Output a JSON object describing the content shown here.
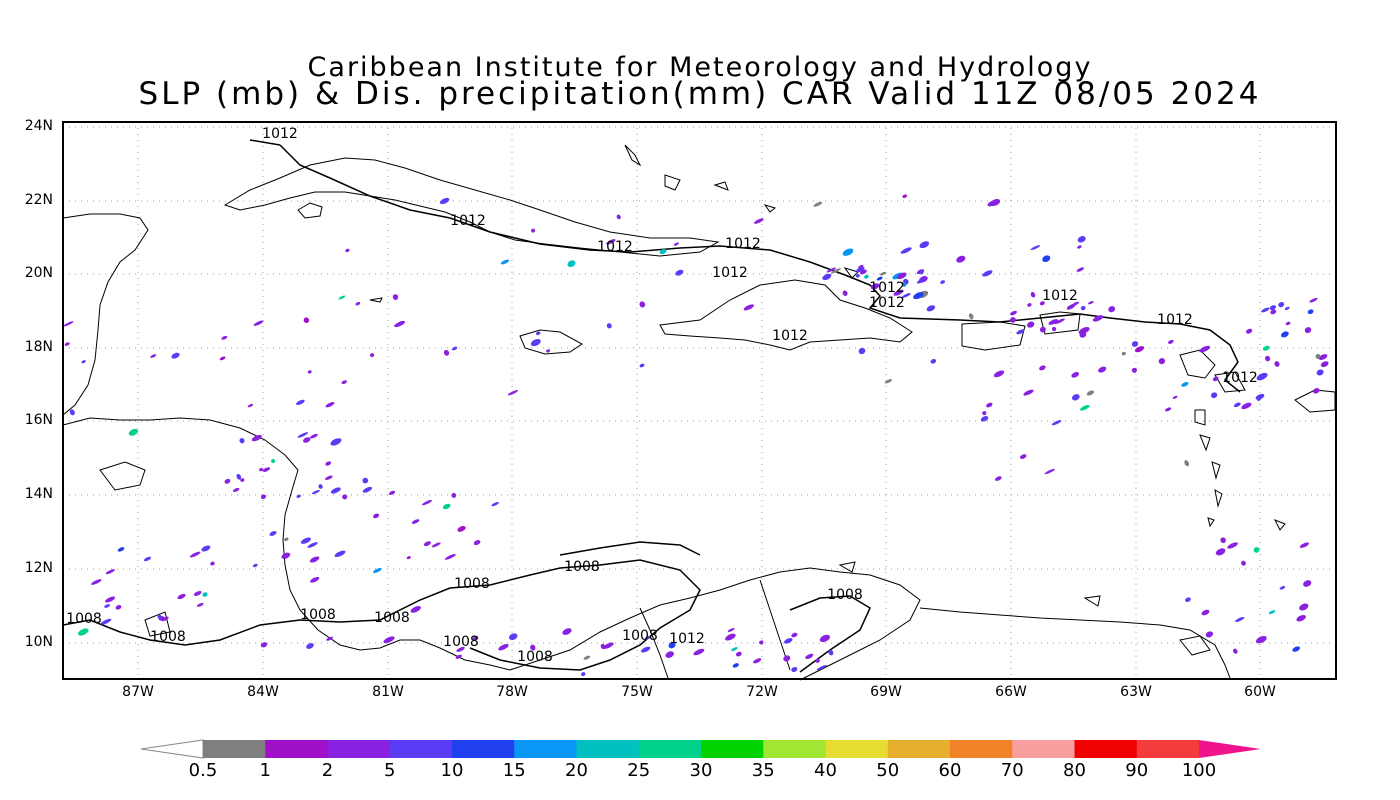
{
  "title": {
    "line1": "Caribbean Institute for Meteorology and Hydrology",
    "line2": "SLP (mb) & Dis. precipitation(mm) CAR Valid 11Z 08/05 2024"
  },
  "axes": {
    "lat_labels": [
      "24N",
      "22N",
      "20N",
      "18N",
      "16N",
      "14N",
      "12N",
      "10N"
    ],
    "lon_labels": [
      "87W",
      "84W",
      "81W",
      "78W",
      "75W",
      "72W",
      "69W",
      "66W",
      "63W",
      "60W"
    ]
  },
  "isobars": {
    "labels": [
      {
        "text": "1012"
      },
      {
        "text": "1012"
      },
      {
        "text": "1012"
      },
      {
        "text": "1012"
      },
      {
        "text": "1012"
      },
      {
        "text": "1012"
      },
      {
        "text": "1012"
      },
      {
        "text": "1012"
      },
      {
        "text": "1012"
      },
      {
        "text": "1012"
      },
      {
        "text": "1012"
      },
      {
        "text": "1008"
      },
      {
        "text": "1008"
      },
      {
        "text": "1008"
      },
      {
        "text": "1008"
      },
      {
        "text": "1008"
      },
      {
        "text": "1008"
      },
      {
        "text": "1008"
      },
      {
        "text": "1008"
      },
      {
        "text": "1008"
      },
      {
        "text": "1008"
      },
      {
        "text": "1012"
      }
    ]
  },
  "colorbar": {
    "labels": [
      "0.5",
      "1",
      "2",
      "5",
      "10",
      "15",
      "20",
      "25",
      "30",
      "35",
      "40",
      "50",
      "60",
      "70",
      "80",
      "90",
      "100"
    ],
    "colors": [
      "#7f7f7f",
      "#a010c8",
      "#8a20e0",
      "#5a3cf5",
      "#2040f0",
      "#0a96f5",
      "#00c0c0",
      "#00d28c",
      "#00d200",
      "#a0e632",
      "#e6dc32",
      "#e6af2d",
      "#f08228",
      "#fa9fa0",
      "#f00000",
      "#f53c3c",
      "#f0148c"
    ]
  },
  "colors": {
    "border": "#000000",
    "grid": "#a0a0a0",
    "precip_light": "#8a20e0",
    "precip_dark": "#5a3cf5"
  }
}
